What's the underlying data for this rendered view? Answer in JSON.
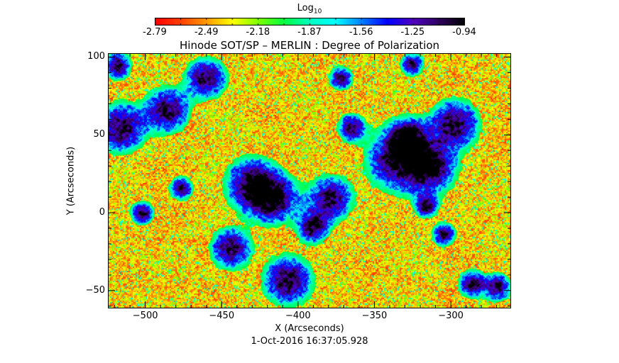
{
  "colorbar": {
    "title": "Log",
    "title_sub": "10",
    "tick_labels": [
      "-2.79",
      "-2.49",
      "-2.18",
      "-1.87",
      "-1.56",
      "-1.25",
      "-0.94"
    ],
    "range": [
      -2.79,
      -0.94
    ],
    "colormap": [
      "#ff0000",
      "#ff4000",
      "#ff9a00",
      "#ffff00",
      "#80ff00",
      "#00ff40",
      "#00ffc0",
      "#00ffff",
      "#0080ff",
      "#0000ff",
      "#5000c0",
      "#300060",
      "#000000"
    ]
  },
  "chart_data": {
    "type": "heatmap",
    "title": "Hinode SOT/SP – MERLIN : Degree of Polarization",
    "xlabel": "X (Arcseconds)",
    "ylabel": "Y (Arcseconds)",
    "xlim": [
      -524,
      -261
    ],
    "ylim": [
      -61,
      102
    ],
    "x_ticks": [
      -500,
      -450,
      -400,
      -350,
      -300
    ],
    "y_ticks": [
      100,
      50,
      0,
      -50
    ],
    "value_scale": "log10",
    "value_range": [
      -2.79,
      -0.94
    ]
  },
  "footer": {
    "date": "1-Oct-2016 16:37:05.928"
  }
}
